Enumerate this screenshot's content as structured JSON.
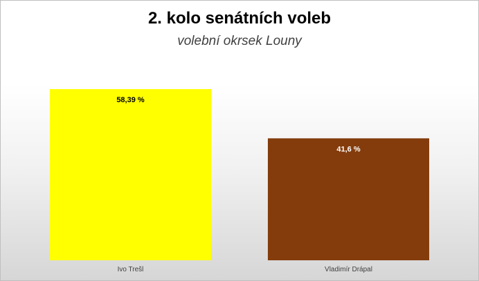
{
  "chart_data": {
    "type": "bar",
    "title": "2. kolo senátních voleb",
    "subtitle": "volební okrsek Louny",
    "categories": [
      "Ivo Trešl",
      "Vladimír Drápal"
    ],
    "values": [
      58.39,
      41.6
    ],
    "data_labels": [
      "58,39  %",
      "41,6 %"
    ],
    "colors": [
      "#ffff00",
      "#843c0c"
    ],
    "label_colors": [
      "#000000",
      "#ffffff"
    ],
    "ylim": [
      0,
      65
    ],
    "grid": false,
    "legend": "none"
  }
}
